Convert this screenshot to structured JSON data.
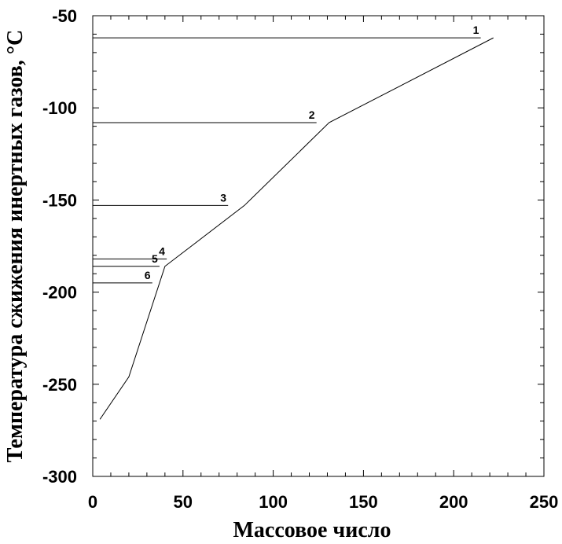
{
  "chart_data": {
    "type": "line",
    "title": "",
    "xlabel": "Массовое число",
    "ylabel": "Температура сжижения инертных газов, °C",
    "xlim": [
      0,
      250
    ],
    "ylim": [
      -300,
      -50
    ],
    "x_ticks": [
      0,
      50,
      100,
      150,
      200,
      250
    ],
    "y_ticks": [
      -50,
      -100,
      -150,
      -200,
      -250,
      -300
    ],
    "x_tick_labels": [
      "0",
      "50",
      "100",
      "150",
      "200",
      "250"
    ],
    "y_tick_labels": [
      "-50",
      "-100",
      "-150",
      "-200",
      "-250",
      "-300"
    ],
    "grid": false,
    "series": [
      {
        "x": [
          4,
          20,
          40,
          84,
          131,
          222
        ],
        "y": [
          -269,
          -246,
          -186,
          -153,
          -108,
          -62
        ]
      }
    ],
    "reference_lines": [
      {
        "label": "1",
        "y": -62,
        "x_end": 215
      },
      {
        "label": "2",
        "y": -108,
        "x_end": 124
      },
      {
        "label": "3",
        "y": -153,
        "x_end": 75
      },
      {
        "label": "4",
        "y": -182,
        "x_end": 41
      },
      {
        "label": "5",
        "y": -186,
        "x_end": 37
      },
      {
        "label": "6",
        "y": -195,
        "x_end": 33
      }
    ]
  }
}
